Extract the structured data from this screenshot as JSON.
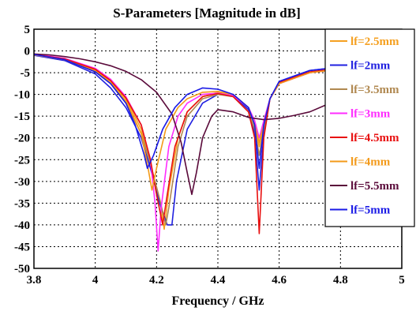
{
  "chart_data": {
    "type": "line",
    "title": "S-Parameters [Magnitude in dB]",
    "xlabel": "Frequency / GHz",
    "ylabel": "",
    "xlim": [
      3.8,
      5.0
    ],
    "ylim": [
      -50,
      5
    ],
    "xticks": [
      3.8,
      4,
      4.2,
      4.4,
      4.6,
      4.8,
      5
    ],
    "xtick_labels": [
      "3.8",
      "4",
      "4.2",
      "4.4",
      "4.6",
      "4.8",
      "5"
    ],
    "yticks": [
      5,
      0,
      -5,
      -10,
      -15,
      -20,
      -25,
      -30,
      -35,
      -40,
      -45,
      -50
    ],
    "ytick_labels": [
      "5",
      "0",
      "-5",
      "-10",
      "-15",
      "-20",
      "-25",
      "-30",
      "-35",
      "-40",
      "-45",
      "-50"
    ],
    "grid": true,
    "legend_position": "right",
    "series": [
      {
        "name": "lf=2.5mm",
        "color": "#f5a020",
        "points": [
          [
            3.8,
            -0.8
          ],
          [
            3.9,
            -1.9
          ],
          [
            4.0,
            -4.5
          ],
          [
            4.05,
            -7
          ],
          [
            4.1,
            -11
          ],
          [
            4.15,
            -18
          ],
          [
            4.18,
            -26
          ],
          [
            4.21,
            -34
          ],
          [
            4.225,
            -41
          ],
          [
            4.24,
            -32
          ],
          [
            4.27,
            -20
          ],
          [
            4.3,
            -14
          ],
          [
            4.35,
            -10.5
          ],
          [
            4.4,
            -9.5
          ],
          [
            4.45,
            -10
          ],
          [
            4.5,
            -13
          ],
          [
            4.52,
            -17
          ],
          [
            4.535,
            -22
          ],
          [
            4.55,
            -17
          ],
          [
            4.57,
            -11
          ],
          [
            4.6,
            -7.5
          ],
          [
            4.7,
            -5
          ],
          [
            4.8,
            -4
          ],
          [
            5.0,
            -3.5
          ]
        ]
      },
      {
        "name": "lf=2mm",
        "color": "#2020e0",
        "points": [
          [
            3.8,
            -1.0
          ],
          [
            3.9,
            -2.2
          ],
          [
            4.0,
            -5.3
          ],
          [
            4.05,
            -8.5
          ],
          [
            4.1,
            -13
          ],
          [
            4.15,
            -20
          ],
          [
            4.18,
            -27
          ],
          [
            4.21,
            -35
          ],
          [
            4.235,
            -40
          ],
          [
            4.25,
            -40
          ],
          [
            4.265,
            -30
          ],
          [
            4.3,
            -18
          ],
          [
            4.35,
            -12
          ],
          [
            4.4,
            -10
          ],
          [
            4.45,
            -10.3
          ],
          [
            4.5,
            -13.5
          ],
          [
            4.52,
            -19
          ],
          [
            4.535,
            -32
          ],
          [
            4.55,
            -19
          ],
          [
            4.57,
            -11
          ],
          [
            4.6,
            -7
          ],
          [
            4.7,
            -4.5
          ],
          [
            4.8,
            -3.7
          ],
          [
            5.0,
            -3.3
          ]
        ]
      },
      {
        "name": "lf=3.5mm",
        "color": "#b08850",
        "points": [
          [
            3.8,
            -0.9
          ],
          [
            3.9,
            -2.0
          ],
          [
            4.0,
            -4.8
          ],
          [
            4.05,
            -7.5
          ],
          [
            4.1,
            -12
          ],
          [
            4.15,
            -19
          ],
          [
            4.18,
            -26
          ],
          [
            4.21,
            -34
          ],
          [
            4.23,
            -40
          ],
          [
            4.24,
            -36
          ],
          [
            4.27,
            -22
          ],
          [
            4.3,
            -15
          ],
          [
            4.35,
            -11
          ],
          [
            4.4,
            -10
          ],
          [
            4.45,
            -10.5
          ],
          [
            4.5,
            -14
          ],
          [
            4.52,
            -18
          ],
          [
            4.535,
            -24
          ],
          [
            4.55,
            -18
          ],
          [
            4.57,
            -11
          ],
          [
            4.6,
            -7.5
          ],
          [
            4.7,
            -5
          ],
          [
            4.8,
            -4
          ],
          [
            5.0,
            -3.5
          ]
        ]
      },
      {
        "name": "lf=3mm",
        "color": "#ff2cff",
        "points": [
          [
            3.8,
            -0.7
          ],
          [
            3.9,
            -1.7
          ],
          [
            4.0,
            -4.0
          ],
          [
            4.05,
            -6.5
          ],
          [
            4.1,
            -10.5
          ],
          [
            4.15,
            -17
          ],
          [
            4.18,
            -25
          ],
          [
            4.195,
            -35
          ],
          [
            4.205,
            -46
          ],
          [
            4.215,
            -36
          ],
          [
            4.24,
            -22
          ],
          [
            4.27,
            -15
          ],
          [
            4.3,
            -12
          ],
          [
            4.35,
            -10
          ],
          [
            4.4,
            -9.7
          ],
          [
            4.45,
            -10.3
          ],
          [
            4.5,
            -13
          ],
          [
            4.52,
            -16
          ],
          [
            4.535,
            -20
          ],
          [
            4.55,
            -16
          ],
          [
            4.57,
            -11
          ],
          [
            4.6,
            -7.5
          ],
          [
            4.7,
            -5
          ],
          [
            4.8,
            -4.2
          ],
          [
            5.0,
            -3.8
          ]
        ]
      },
      {
        "name": "lf=4.5mm",
        "color": "#e81010",
        "points": [
          [
            3.8,
            -0.8
          ],
          [
            3.9,
            -1.8
          ],
          [
            4.0,
            -4.2
          ],
          [
            4.05,
            -6.8
          ],
          [
            4.1,
            -10.8
          ],
          [
            4.15,
            -17
          ],
          [
            4.18,
            -25
          ],
          [
            4.2,
            -33
          ],
          [
            4.22,
            -40
          ],
          [
            4.235,
            -33
          ],
          [
            4.26,
            -22
          ],
          [
            4.3,
            -14
          ],
          [
            4.35,
            -10.5
          ],
          [
            4.4,
            -9.8
          ],
          [
            4.45,
            -10.5
          ],
          [
            4.5,
            -14
          ],
          [
            4.52,
            -20
          ],
          [
            4.535,
            -42
          ],
          [
            4.55,
            -20
          ],
          [
            4.57,
            -11
          ],
          [
            4.6,
            -7.3
          ],
          [
            4.7,
            -4.8
          ],
          [
            4.8,
            -4
          ],
          [
            5.0,
            -3.6
          ]
        ]
      },
      {
        "name": "lf=4mm",
        "color": "#f39a1a",
        "points": [
          [
            3.8,
            -0.9
          ],
          [
            3.9,
            -2.0
          ],
          [
            4.0,
            -4.7
          ],
          [
            4.05,
            -7.4
          ],
          [
            4.1,
            -11.5
          ],
          [
            4.15,
            -19
          ],
          [
            4.17,
            -26
          ],
          [
            4.185,
            -32
          ],
          [
            4.2,
            -27
          ],
          [
            4.23,
            -18
          ],
          [
            4.27,
            -13
          ],
          [
            4.3,
            -11
          ],
          [
            4.35,
            -9.5
          ],
          [
            4.4,
            -9.3
          ],
          [
            4.45,
            -10
          ],
          [
            4.5,
            -13
          ],
          [
            4.52,
            -17
          ],
          [
            4.535,
            -21
          ],
          [
            4.55,
            -17
          ],
          [
            4.57,
            -11
          ],
          [
            4.6,
            -7.5
          ],
          [
            4.7,
            -5
          ],
          [
            4.8,
            -4.2
          ],
          [
            5.0,
            -3.8
          ]
        ]
      },
      {
        "name": "lf=5.5mm",
        "color": "#5a0a3a",
        "points": [
          [
            3.8,
            -0.7
          ],
          [
            3.85,
            -0.9
          ],
          [
            3.9,
            -1.3
          ],
          [
            3.95,
            -1.8
          ],
          [
            4.0,
            -2.5
          ],
          [
            4.05,
            -3.4
          ],
          [
            4.1,
            -4.7
          ],
          [
            4.15,
            -6.6
          ],
          [
            4.2,
            -9.5
          ],
          [
            4.25,
            -14.5
          ],
          [
            4.28,
            -21
          ],
          [
            4.3,
            -28
          ],
          [
            4.315,
            -33
          ],
          [
            4.33,
            -28
          ],
          [
            4.35,
            -20
          ],
          [
            4.38,
            -15
          ],
          [
            4.4,
            -13.5
          ],
          [
            4.45,
            -14
          ],
          [
            4.5,
            -15.3
          ],
          [
            4.55,
            -15.8
          ],
          [
            4.6,
            -15.5
          ],
          [
            4.65,
            -14.8
          ],
          [
            4.7,
            -14
          ],
          [
            4.75,
            -12.5
          ],
          [
            4.8,
            -11
          ],
          [
            4.9,
            -8
          ],
          [
            5.0,
            -6
          ]
        ]
      },
      {
        "name": "lf=5mm",
        "color": "#1a1ae6",
        "points": [
          [
            3.8,
            -0.8
          ],
          [
            3.9,
            -2.0
          ],
          [
            4.0,
            -4.8
          ],
          [
            4.05,
            -7.5
          ],
          [
            4.1,
            -12
          ],
          [
            4.13,
            -17
          ],
          [
            4.16,
            -24
          ],
          [
            4.17,
            -27
          ],
          [
            4.19,
            -24
          ],
          [
            4.22,
            -18
          ],
          [
            4.26,
            -13
          ],
          [
            4.3,
            -10
          ],
          [
            4.35,
            -8.5
          ],
          [
            4.4,
            -8.8
          ],
          [
            4.45,
            -10
          ],
          [
            4.5,
            -13
          ],
          [
            4.52,
            -17
          ],
          [
            4.535,
            -27
          ],
          [
            4.55,
            -17
          ],
          [
            4.57,
            -11
          ],
          [
            4.6,
            -7
          ],
          [
            4.7,
            -4.5
          ],
          [
            4.8,
            -3.7
          ],
          [
            5.0,
            -3.2
          ]
        ]
      }
    ]
  }
}
